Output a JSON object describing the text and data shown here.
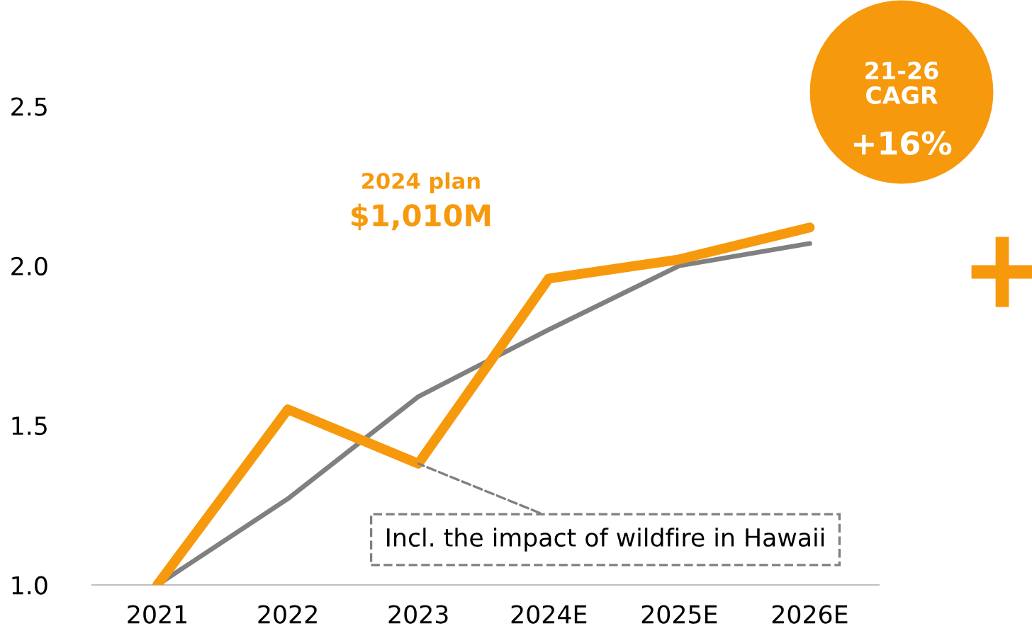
{
  "chart_data": {
    "type": "line",
    "categories": [
      "2021",
      "2022",
      "2023",
      "2024E",
      "2025E",
      "2026E"
    ],
    "series": [
      {
        "color": "#f7990c",
        "values": [
          1.0,
          1.55,
          1.38,
          1.96,
          2.02,
          2.12
        ]
      },
      {
        "color": "#808080",
        "values": [
          1.0,
          1.27,
          1.59,
          1.8,
          2.0,
          2.07
        ]
      }
    ],
    "ylim": [
      1.0,
      2.5
    ],
    "yticks": [
      {
        "value": 1,
        "label": "1.0"
      },
      1.5,
      {
        "value": 2,
        "label": "2.0"
      },
      2.5
    ],
    "grid": false,
    "legend": false,
    "marker": "none",
    "line_style": "solid",
    "annotations": [
      "2024 plan",
      "$1,010M",
      "21-26\nCAGR",
      "+16%",
      {
        "text": "Incl. the impact of wildfire in Hawaii",
        "x": "2023",
        "y": 1.38
      }
    ]
  }
}
